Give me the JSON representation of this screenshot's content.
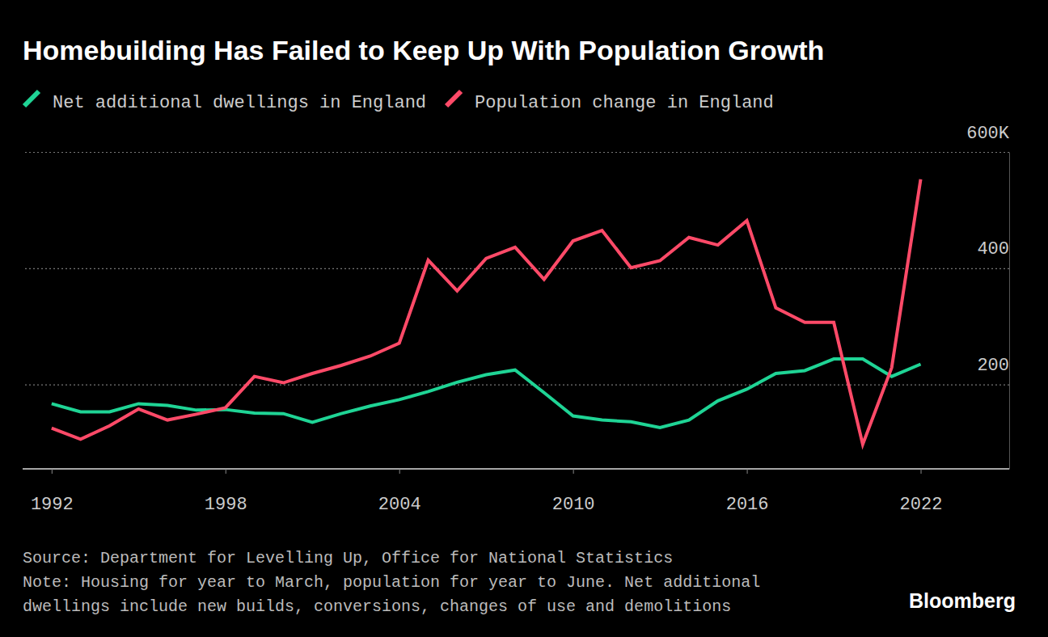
{
  "chart_data": {
    "type": "line",
    "title": "Homebuilding Has Failed to Keep Up With Population Growth",
    "x": [
      1992,
      1993,
      1994,
      1995,
      1996,
      1997,
      1998,
      1999,
      2000,
      2001,
      2002,
      2003,
      2004,
      2005,
      2006,
      2007,
      2008,
      2009,
      2010,
      2011,
      2012,
      2013,
      2014,
      2015,
      2016,
      2017,
      2018,
      2019,
      2020,
      2021,
      2022
    ],
    "xlim": [
      1991,
      2025
    ],
    "xticks": [
      1992,
      1998,
      2004,
      2010,
      2016,
      2022
    ],
    "ylim": [
      55,
      600
    ],
    "yticks": [
      200,
      400,
      {
        "value": 600,
        "label": "600K"
      }
    ],
    "grid": true,
    "legend": "top-left",
    "series": [
      {
        "name": "Net additional dwellings in England",
        "color": "#1fd495",
        "values": [
          167,
          153,
          153,
          167,
          164,
          156,
          157,
          151,
          150,
          135,
          150,
          163,
          174,
          188,
          204,
          217,
          225,
          186,
          146,
          139,
          136,
          126,
          139,
          172,
          192,
          219,
          224,
          244,
          244,
          214,
          235
        ]
      },
      {
        "name": "Population change in England",
        "color": "#ff4a68",
        "values": [
          125,
          106,
          129,
          158,
          139,
          149,
          160,
          214,
          203,
          219,
          233,
          249,
          271,
          414,
          361,
          417,
          436,
          381,
          447,
          465,
          401,
          413,
          453,
          440,
          482,
          332,
          307,
          307,
          97,
          229,
          553
        ]
      }
    ],
    "notes": [
      "Source: Department for Levelling Up, Office for National Statistics",
      "Note: Housing for year to March, population for year to June. Net additional",
      "dwellings include new builds, conversions, changes of use and demolitions"
    ],
    "credit": "Bloomberg"
  }
}
